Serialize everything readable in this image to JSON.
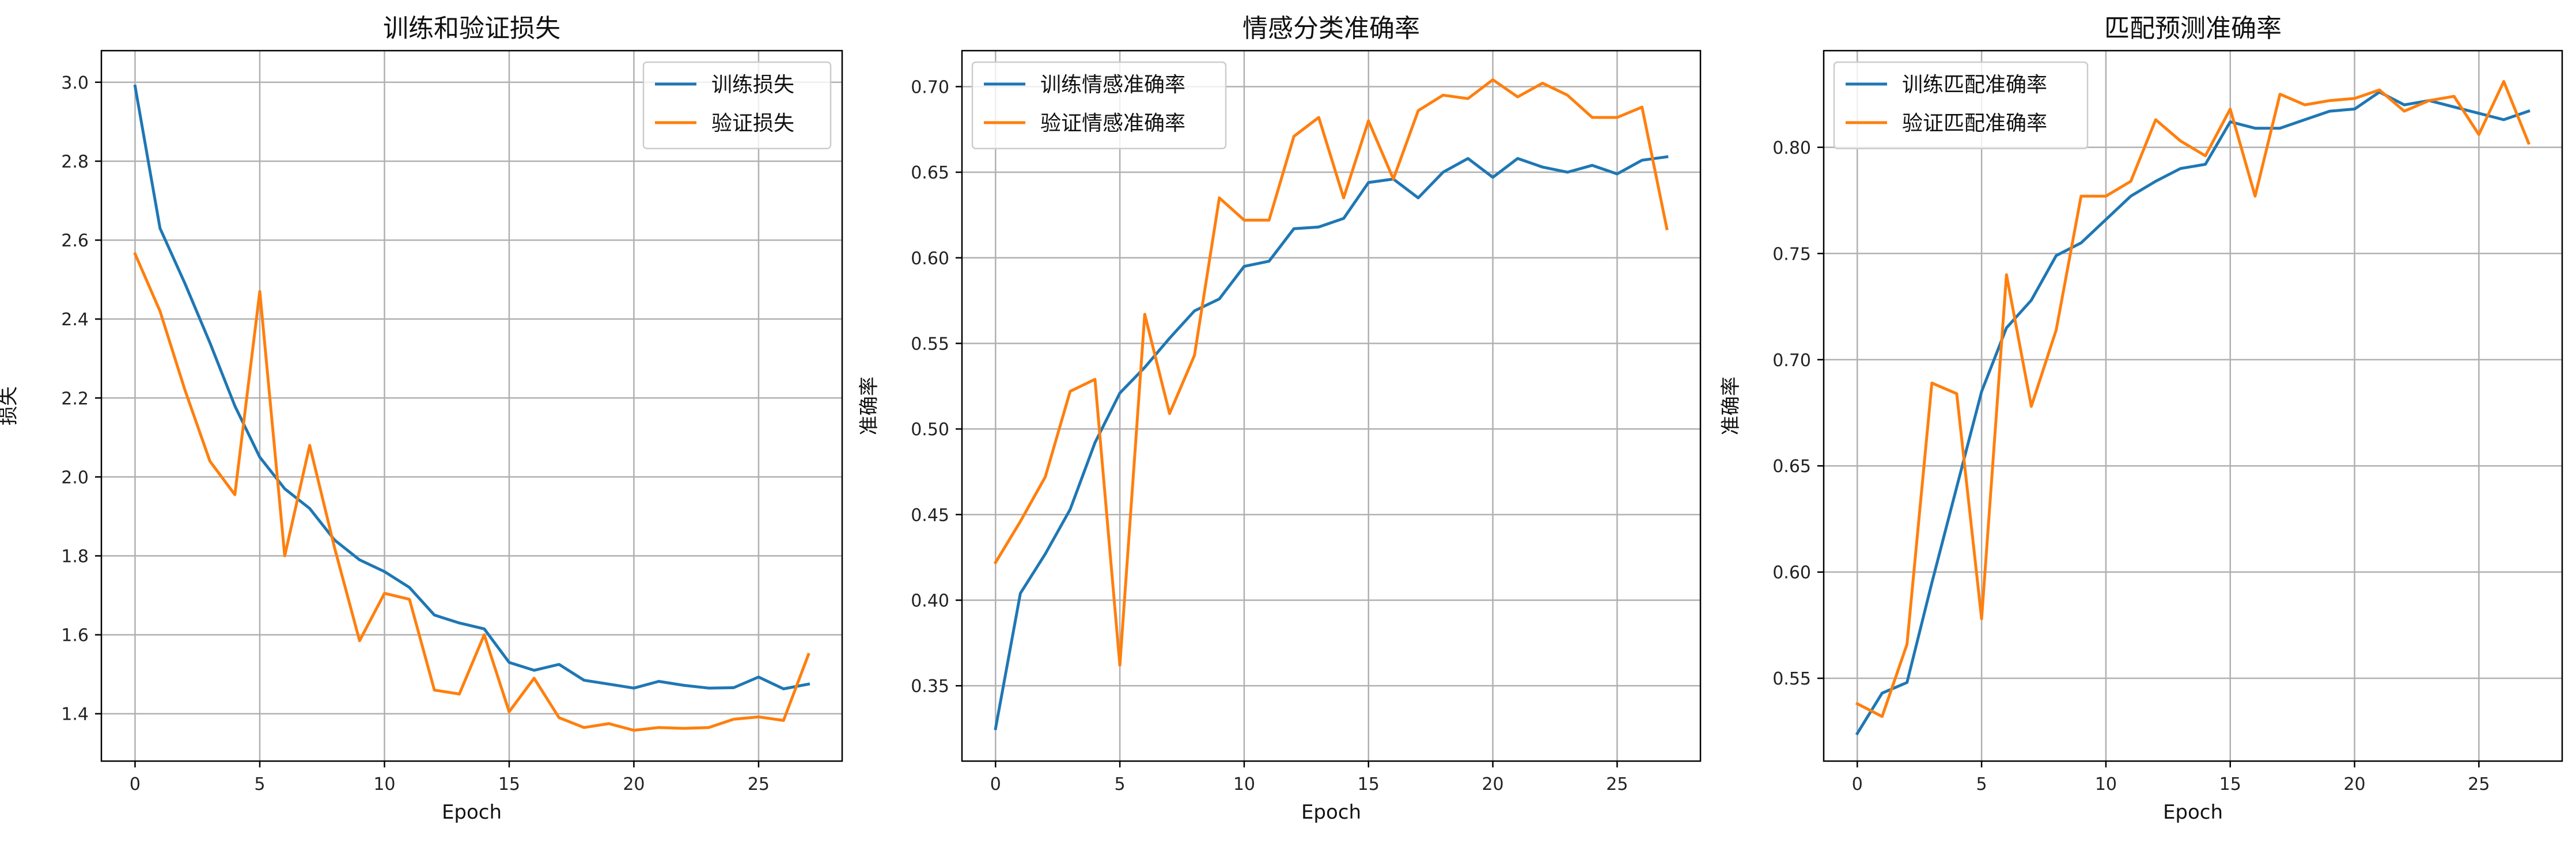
{
  "chart_data": [
    {
      "type": "line",
      "title": "训练和验证损失",
      "xlabel": "Epoch",
      "ylabel": "损失",
      "xlim": [
        -1.35,
        28.35
      ],
      "ylim": [
        1.28,
        3.08
      ],
      "xticks": [
        0,
        5,
        10,
        15,
        20,
        25
      ],
      "yticks": [
        1.4,
        1.6,
        1.8,
        2.0,
        2.2,
        2.4,
        2.6,
        2.8,
        3.0
      ],
      "ytick_labels": [
        "1.4",
        "1.6",
        "1.8",
        "2.0",
        "2.2",
        "2.4",
        "2.6",
        "2.8",
        "3.0"
      ],
      "grid": true,
      "legend_position": "top-right",
      "x": [
        0,
        1,
        2,
        3,
        4,
        5,
        6,
        7,
        8,
        9,
        10,
        11,
        12,
        13,
        14,
        15,
        16,
        17,
        18,
        19,
        20,
        21,
        22,
        23,
        24,
        25,
        26,
        27
      ],
      "series": [
        {
          "name": "训练损失",
          "color": "#1f77b4",
          "values": [
            2.99,
            2.63,
            2.49,
            2.34,
            2.18,
            2.05,
            1.97,
            1.92,
            1.84,
            1.79,
            1.76,
            1.72,
            1.65,
            1.63,
            1.615,
            1.53,
            1.51,
            1.525,
            1.485,
            1.475,
            1.465,
            1.482,
            1.472,
            1.465,
            1.466,
            1.493,
            1.463,
            1.475
          ]
        },
        {
          "name": "验证损失",
          "color": "#ff7f0e",
          "values": [
            2.565,
            2.42,
            2.22,
            2.04,
            1.955,
            2.47,
            1.8,
            2.08,
            1.82,
            1.585,
            1.705,
            1.69,
            1.46,
            1.45,
            1.6,
            1.405,
            1.49,
            1.39,
            1.365,
            1.375,
            1.358,
            1.365,
            1.363,
            1.365,
            1.386,
            1.392,
            1.383,
            1.55
          ]
        }
      ]
    },
    {
      "type": "line",
      "title": "情感分类准确率",
      "xlabel": "Epoch",
      "ylabel": "准确率",
      "xlim": [
        -1.35,
        28.35
      ],
      "ylim": [
        0.306,
        0.721
      ],
      "xticks": [
        0,
        5,
        10,
        15,
        20,
        25
      ],
      "yticks": [
        0.35,
        0.4,
        0.45,
        0.5,
        0.55,
        0.6,
        0.65,
        0.7
      ],
      "ytick_labels": [
        "0.35",
        "0.40",
        "0.45",
        "0.50",
        "0.55",
        "0.60",
        "0.65",
        "0.70"
      ],
      "grid": true,
      "legend_position": "top-left",
      "x": [
        0,
        1,
        2,
        3,
        4,
        5,
        6,
        7,
        8,
        9,
        10,
        11,
        12,
        13,
        14,
        15,
        16,
        17,
        18,
        19,
        20,
        21,
        22,
        23,
        24,
        25,
        26,
        27
      ],
      "series": [
        {
          "name": "训练情感准确率",
          "color": "#1f77b4",
          "values": [
            0.325,
            0.404,
            0.427,
            0.453,
            0.492,
            0.521,
            0.536,
            0.553,
            0.569,
            0.576,
            0.595,
            0.598,
            0.617,
            0.618,
            0.623,
            0.644,
            0.646,
            0.635,
            0.65,
            0.658,
            0.647,
            0.658,
            0.653,
            0.65,
            0.654,
            0.649,
            0.657,
            0.659
          ]
        },
        {
          "name": "验证情感准确率",
          "color": "#ff7f0e",
          "values": [
            0.422,
            0.446,
            0.472,
            0.522,
            0.529,
            0.362,
            0.567,
            0.509,
            0.543,
            0.635,
            0.622,
            0.622,
            0.671,
            0.682,
            0.635,
            0.68,
            0.646,
            0.686,
            0.695,
            0.693,
            0.704,
            0.694,
            0.702,
            0.695,
            0.682,
            0.682,
            0.688,
            0.617
          ]
        }
      ]
    },
    {
      "type": "line",
      "title": "匹配预测准确率",
      "xlabel": "Epoch",
      "ylabel": "准确率",
      "xlim": [
        -1.35,
        28.35
      ],
      "ylim": [
        0.511,
        0.8455
      ],
      "xticks": [
        0,
        5,
        10,
        15,
        20,
        25
      ],
      "yticks": [
        0.55,
        0.6,
        0.65,
        0.7,
        0.75,
        0.8
      ],
      "ytick_labels": [
        "0.55",
        "0.60",
        "0.65",
        "0.70",
        "0.75",
        "0.80"
      ],
      "grid": true,
      "legend_position": "top-left",
      "x": [
        0,
        1,
        2,
        3,
        4,
        5,
        6,
        7,
        8,
        9,
        10,
        11,
        12,
        13,
        14,
        15,
        16,
        17,
        18,
        19,
        20,
        21,
        22,
        23,
        24,
        25,
        26,
        27
      ],
      "series": [
        {
          "name": "训练匹配准确率",
          "color": "#1f77b4",
          "values": [
            0.524,
            0.543,
            0.548,
            0.595,
            0.64,
            0.685,
            0.715,
            0.728,
            0.749,
            0.755,
            0.766,
            0.777,
            0.784,
            0.79,
            0.792,
            0.812,
            0.809,
            0.809,
            0.813,
            0.817,
            0.818,
            0.826,
            0.82,
            0.822,
            0.819,
            0.816,
            0.813,
            0.817
          ]
        },
        {
          "name": "验证匹配准确率",
          "color": "#ff7f0e",
          "values": [
            0.538,
            0.532,
            0.566,
            0.689,
            0.684,
            0.578,
            0.74,
            0.678,
            0.714,
            0.777,
            0.777,
            0.784,
            0.813,
            0.803,
            0.796,
            0.818,
            0.777,
            0.825,
            0.82,
            0.822,
            0.823,
            0.827,
            0.817,
            0.822,
            0.824,
            0.806,
            0.831,
            0.802
          ]
        }
      ]
    }
  ]
}
